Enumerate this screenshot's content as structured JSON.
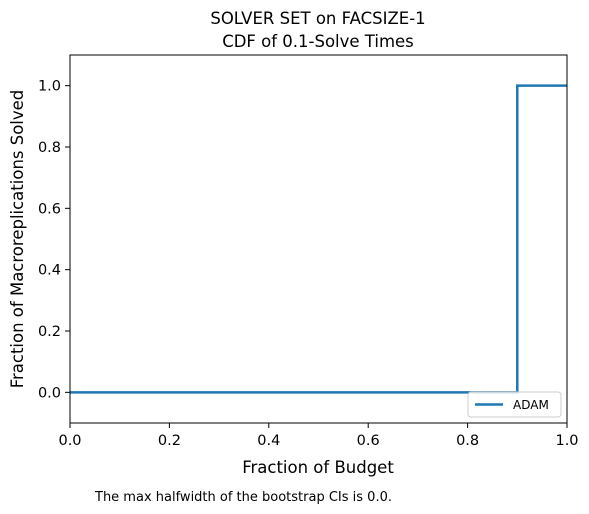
{
  "chart_data": {
    "type": "line",
    "title": "SOLVER SET on FACSIZE-1",
    "subtitle": "CDF of 0.1-Solve Times",
    "xlabel": "Fraction of Budget",
    "ylabel": "Fraction of Macroreplications Solved",
    "xlim": [
      0.0,
      1.0
    ],
    "ylim": [
      -0.1,
      1.1
    ],
    "xticks": [
      "0.0",
      "0.2",
      "0.4",
      "0.6",
      "0.8",
      "1.0"
    ],
    "yticks": [
      "0.0",
      "0.2",
      "0.4",
      "0.6",
      "0.8",
      "1.0"
    ],
    "grid": false,
    "legend_position": "lower-right",
    "series": [
      {
        "name": "ADAM",
        "color": "#1f77b4",
        "step": true,
        "x": [
          0.0,
          0.9,
          0.9,
          1.0
        ],
        "y": [
          0.0,
          0.0,
          1.0,
          1.0
        ]
      }
    ],
    "annotation": "The max halfwidth of the bootstrap CIs is 0.0."
  }
}
